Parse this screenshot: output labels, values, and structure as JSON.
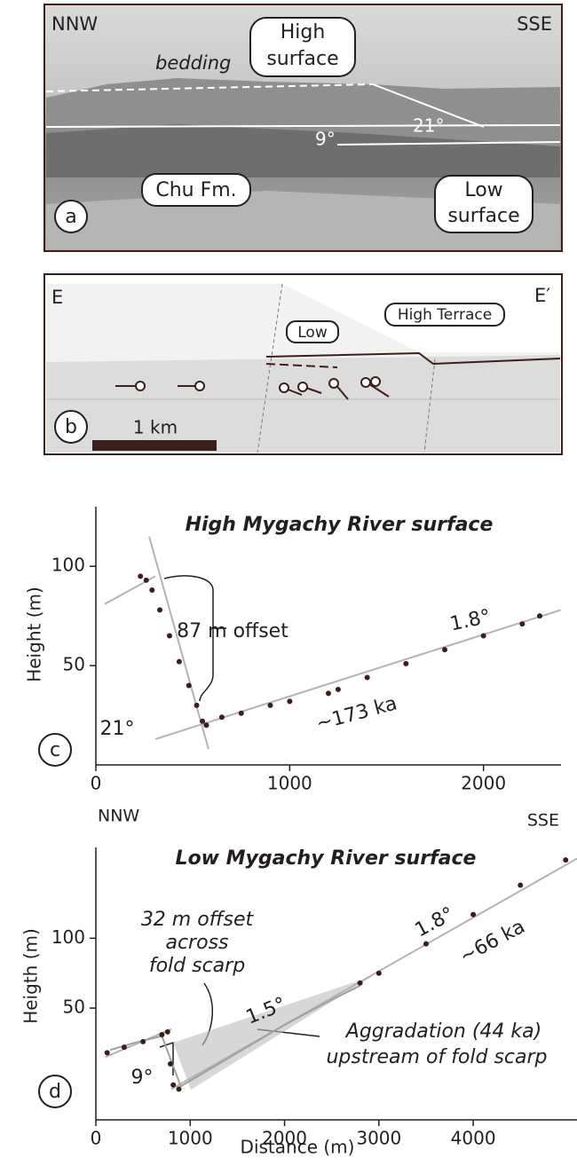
{
  "photo_panel": {
    "label": "a",
    "left": "NNW",
    "right": "SSE",
    "bedding": "bedding",
    "high_surface": [
      "High",
      "surface"
    ],
    "low_surface": [
      "Low",
      "surface"
    ],
    "formation": "Chu Fm.",
    "angle_high": "21°",
    "angle_low": "9°"
  },
  "section_panel": {
    "label": "b",
    "left": "E",
    "right": "E′",
    "low": "Low",
    "high": "High Terrace",
    "scale": "1 km"
  },
  "orientation": {
    "left": "NNW",
    "right": "SSE"
  },
  "chart_data": [
    {
      "type": "scatter",
      "panel_label": "c",
      "title": "High Mygachy River surface",
      "ylabel": "Height (m)",
      "xlim": [
        0,
        2400
      ],
      "ylim": [
        0,
        130
      ],
      "xticks": [
        0,
        1000,
        2000
      ],
      "yticks": [
        50,
        100
      ],
      "annotations": [
        "87 m offset",
        "1.8°",
        "21°",
        "~173 ka"
      ],
      "series": [
        {
          "color": "#b3b3b3",
          "mode": "line",
          "x": [
            275,
            581
          ],
          "values": [
            115,
            8
          ]
        },
        {
          "color": "#b3b3b3",
          "mode": "line",
          "x": [
            307,
            2398
          ],
          "values": [
            13,
            78
          ]
        },
        {
          "color": "#b3b3b3",
          "mode": "line",
          "x": [
            46,
            307
          ],
          "values": [
            81,
            95
          ]
        },
        {
          "color": "#3b1e1e",
          "mode": "markers",
          "x": [
            230,
            260,
            290,
            330,
            380,
            430,
            480,
            520,
            550,
            570,
            650,
            750,
            900,
            1000,
            1200,
            1250,
            1400,
            1600,
            1800,
            2000,
            2200,
            2290
          ],
          "values": [
            95,
            93,
            88,
            78,
            65,
            52,
            40,
            30,
            22,
            20,
            24,
            26,
            30,
            32,
            36,
            38,
            44,
            51,
            58,
            65,
            71,
            75
          ]
        }
      ]
    },
    {
      "type": "scatter",
      "panel_label": "d",
      "title": "Low Mygachy River surface",
      "ylabel": "Heigth (m)",
      "xlabel": "Distance (m)",
      "xlim": [
        0,
        5100
      ],
      "ylim": [
        -30,
        165
      ],
      "xticks": [
        0,
        1000,
        2000,
        3000,
        4000
      ],
      "yticks": [
        50,
        100
      ],
      "annotations": [
        "32 m offset",
        "across",
        "fold scarp",
        "1.5°",
        "1.8°",
        "~66 ka",
        "Aggradation (44 ka)",
        "upstream of fold scarp",
        "9°"
      ],
      "series": [
        {
          "color": "#b3b3b3",
          "mode": "line",
          "x": [
            800,
            5100
          ],
          "values": [
            -8,
            157
          ]
        },
        {
          "color": "#b3b3b3",
          "mode": "line",
          "x": [
            100,
            800
          ],
          "values": [
            15,
            35
          ]
        },
        {
          "color": "#a0a0a0",
          "mode": "line",
          "x": [
            150,
            400,
            700,
            900,
            1100,
            1500,
            2000,
            2500,
            2800
          ],
          "values": [
            20,
            25,
            30,
            -6,
            2,
            18,
            38,
            56,
            66
          ]
        },
        {
          "color": "#3b1e1e",
          "mode": "markers",
          "x": [
            120,
            300,
            500,
            700,
            760,
            790,
            820,
            880,
            1000,
            2800,
            3000,
            3500,
            4000,
            4500,
            4980
          ],
          "values": [
            18,
            22,
            26,
            31,
            33,
            10,
            -5,
            -8,
            null,
            68,
            75,
            96,
            117,
            138,
            156
          ]
        }
      ]
    }
  ]
}
